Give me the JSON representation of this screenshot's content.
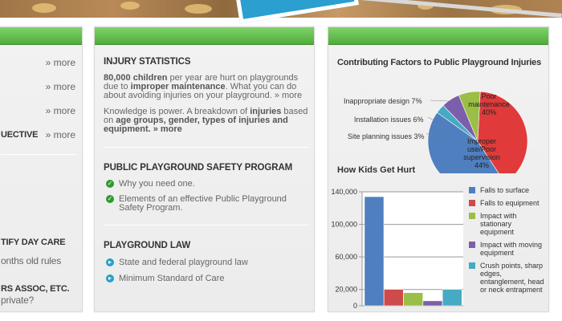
{
  "left_column": {
    "more_links": [
      "» more",
      "» more",
      "» more",
      "» more"
    ],
    "cutoff_lines": [
      "UECTIVE",
      "TIFY DAY CARE",
      "onths old rules",
      "RS ASSOC, ETC.",
      "private?"
    ]
  },
  "middle_column": {
    "injury_statistics": {
      "title": "INJURY STATISTICS",
      "p1_bold": "80,000 children",
      "p1_a": " per year are hurt on playgrounds due to ",
      "p1_bold2": "improper maintenance",
      "p1_b": ". What you can do about avoiding injuries on your playground.",
      "p1_more": " » more",
      "p2_a": "Knowledge is power. A breakdown of ",
      "p2_bold": "injuries",
      "p2_b": " based on ",
      "p2_bold2": "age groups, gender, types of injuries and equipment.",
      "p2_more": " » more"
    },
    "safety_program": {
      "title": "PUBLIC PLAYGROUND SAFETY PROGRAM",
      "items": [
        "Why you need one.",
        "Elements of an effective Public Playground Safety Program."
      ]
    },
    "playground_law": {
      "title": "PLAYGROUND LAW",
      "items": [
        "State and federal playground law",
        "Minimum Standard of Care"
      ]
    }
  },
  "right_column": {
    "pie_title": "Contributing Factors to Public Playground Injuries",
    "bar_title": "How Kids Get Hurt"
  },
  "chart_data": [
    {
      "type": "pie",
      "title": "Contributing Factors to Public Playground Injuries",
      "labels": [
        "Poor maintenance",
        "Improper use/Poor supervision",
        "Site planning issues",
        "Installation issues",
        "Inappropriate design"
      ],
      "values": [
        40,
        44,
        3,
        6,
        7
      ],
      "label_texts": [
        "Poor maintenance 40%",
        "Improper use/Poor supervision 44%",
        "Site planning issues 3%",
        "Installation issues 6%",
        "Inappropriate design 7%"
      ],
      "colors": [
        "#e03a3a",
        "#4f7fbf",
        "#46aac4",
        "#7c5fab",
        "#9bbe46"
      ]
    },
    {
      "type": "bar",
      "title": "How Kids Get Hurt",
      "categories": [
        "Falls to surface",
        "Falls to equipment",
        "Impact with stationary equipment",
        "Impact with moving equipment",
        "Crush points, sharp edges, entanglement, head or neck entrapment"
      ],
      "values": [
        134000,
        20000,
        16000,
        6000,
        20000
      ],
      "colors": [
        "#4f7fbf",
        "#cf4a4a",
        "#9bbe46",
        "#7c5fab",
        "#46aac4"
      ],
      "legend_lines": [
        [
          "Falls to surface"
        ],
        [
          "Falls to equipment"
        ],
        [
          "Impact with",
          "stationary",
          "equipment"
        ],
        [
          "Impact with moving",
          "equipment"
        ],
        [
          "Crush points, sharp",
          "edges,",
          "entanglement, head",
          "or neck entrapment"
        ]
      ],
      "y_ticks": [
        "0",
        "20,000",
        "60,000",
        "100,000",
        "140,000"
      ],
      "y_tick_values": [
        0,
        20000,
        60000,
        100000,
        140000
      ],
      "ylim": [
        0,
        140000
      ],
      "legend": "right"
    }
  ]
}
